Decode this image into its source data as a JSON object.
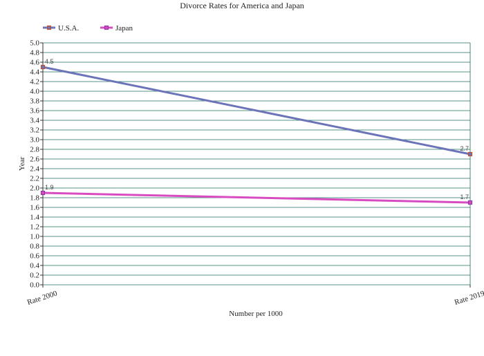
{
  "chart_data": {
    "type": "line",
    "title": "Divorce Rates for America and Japan",
    "xlabel": "Number per 1000",
    "ylabel": "Year",
    "categories": [
      "Rate 2000",
      "Rate 2019"
    ],
    "ylim": [
      0,
      5.0
    ],
    "ytick_step": 0.2,
    "grid": true,
    "legend_position": "top-left",
    "series": [
      {
        "name": "U.S.A.",
        "values": [
          4.5,
          2.7
        ],
        "color": "#6b74b8",
        "marker_color": "#c0502d",
        "labels": [
          "4.5",
          "2.7"
        ]
      },
      {
        "name": "Japan",
        "values": [
          1.9,
          1.7
        ],
        "color": "#d94bc1",
        "marker_color": "#8a3aa3",
        "labels": [
          "1.9",
          "1.7"
        ]
      }
    ]
  }
}
